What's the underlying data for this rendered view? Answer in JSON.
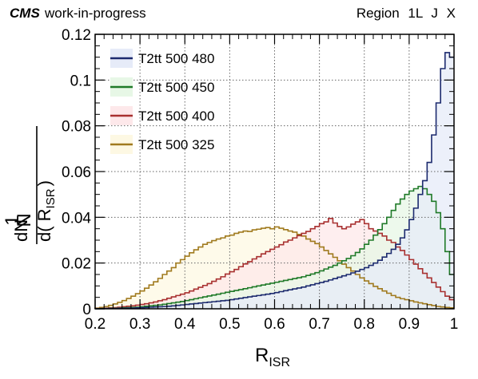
{
  "header": {
    "experiment": "CMS",
    "status": "work-in-progress",
    "region": "Region  1L  J  X"
  },
  "chart_data": {
    "type": "area",
    "xlabel_main": "R",
    "xlabel_sub": "ISR",
    "ylabel_one": "1",
    "ylabel_N": "N",
    "ylabel_dN": "dN",
    "ylabel_d": "d( R",
    "ylabel_sub": "ISR",
    "ylabel_close": ")",
    "xlim": [
      0.2,
      1.0
    ],
    "ylim": [
      0,
      0.12
    ],
    "xticks": [
      "0.2",
      "0.3",
      "0.4",
      "0.5",
      "0.6",
      "0.7",
      "0.8",
      "0.9",
      "1"
    ],
    "yticks": [
      "0",
      "0.02",
      "0.04",
      "0.06",
      "0.08",
      "0.1",
      "0.12"
    ],
    "grid": true,
    "legend_position": "top-left",
    "bin_edges_start": 0.2,
    "bin_width": 0.01,
    "series": [
      {
        "name": "T2tt 500 325",
        "color": "#a07a1e",
        "fill": "#fdf8e3",
        "values": [
          0.0003,
          0.0006,
          0.001,
          0.0015,
          0.0021,
          0.0028,
          0.0036,
          0.0045,
          0.0055,
          0.0066,
          0.0078,
          0.009,
          0.0104,
          0.0118,
          0.0133,
          0.015,
          0.0165,
          0.018,
          0.02,
          0.0215,
          0.023,
          0.0245,
          0.0258,
          0.027,
          0.0282,
          0.029,
          0.0298,
          0.0305,
          0.031,
          0.0318,
          0.0322,
          0.033,
          0.0335,
          0.034,
          0.0338,
          0.0345,
          0.0348,
          0.0352,
          0.0355,
          0.035,
          0.0358,
          0.0352,
          0.0346,
          0.034,
          0.0335,
          0.0325,
          0.0318,
          0.0305,
          0.0295,
          0.0285,
          0.027,
          0.0255,
          0.024,
          0.0225,
          0.021,
          0.0195,
          0.018,
          0.0165,
          0.015,
          0.0135,
          0.0122,
          0.011,
          0.0098,
          0.0088,
          0.0078,
          0.0068,
          0.0058,
          0.005,
          0.0044,
          0.004,
          0.0035,
          0.003,
          0.0026,
          0.0022,
          0.0018,
          0.0014,
          0.001,
          0.0008,
          0.0006,
          0.0004
        ]
      },
      {
        "name": "T2tt 500 400",
        "color": "#a83030",
        "fill": "#fde8ea",
        "values": [
          0.0001,
          0.0002,
          0.0003,
          0.0004,
          0.0005,
          0.0007,
          0.0009,
          0.0011,
          0.0013,
          0.0016,
          0.0019,
          0.0022,
          0.0026,
          0.003,
          0.0035,
          0.004,
          0.0046,
          0.0052,
          0.0058,
          0.0064,
          0.007,
          0.0078,
          0.0086,
          0.0094,
          0.0102,
          0.011,
          0.012,
          0.013,
          0.014,
          0.0152,
          0.0162,
          0.0172,
          0.0184,
          0.0196,
          0.0206,
          0.0218,
          0.0228,
          0.024,
          0.025,
          0.026,
          0.027,
          0.028,
          0.0292,
          0.03,
          0.031,
          0.032,
          0.033,
          0.0338,
          0.035,
          0.036,
          0.0372,
          0.038,
          0.0395,
          0.0375,
          0.036,
          0.035,
          0.0358,
          0.037,
          0.038,
          0.039,
          0.0372,
          0.035,
          0.034,
          0.033,
          0.0318,
          0.03,
          0.029,
          0.027,
          0.0255,
          0.0235,
          0.0215,
          0.0195,
          0.0175,
          0.0155,
          0.0135,
          0.0115,
          0.0095,
          0.0075,
          0.0055,
          0.004
        ]
      },
      {
        "name": "T2tt 500 450",
        "color": "#1f7a28",
        "fill": "#e7f7e6",
        "values": [
          0.0,
          0.0001,
          0.0001,
          0.0002,
          0.0002,
          0.0003,
          0.0004,
          0.0005,
          0.0006,
          0.0007,
          0.0009,
          0.0011,
          0.0013,
          0.0015,
          0.0017,
          0.002,
          0.0023,
          0.0026,
          0.0029,
          0.0032,
          0.0036,
          0.004,
          0.0044,
          0.0048,
          0.0052,
          0.0056,
          0.006,
          0.0064,
          0.0068,
          0.0072,
          0.0076,
          0.008,
          0.0084,
          0.0088,
          0.0092,
          0.0096,
          0.01,
          0.0104,
          0.0108,
          0.0112,
          0.0116,
          0.012,
          0.0124,
          0.0128,
          0.0132,
          0.0136,
          0.014,
          0.0146,
          0.0152,
          0.0158,
          0.0166,
          0.0174,
          0.0182,
          0.019,
          0.02,
          0.021,
          0.022,
          0.0232,
          0.0246,
          0.0262,
          0.0282,
          0.03,
          0.0322,
          0.0346,
          0.0372,
          0.04,
          0.043,
          0.0458,
          0.048,
          0.05,
          0.0515,
          0.0525,
          0.0535,
          0.0525,
          0.05,
          0.047,
          0.042,
          0.035,
          0.025,
          0.015
        ]
      },
      {
        "name": "T2tt 500 480",
        "color": "#1c2a6e",
        "fill": "#e6ebf8",
        "values": [
          0.0,
          0.0,
          0.0001,
          0.0001,
          0.0001,
          0.0002,
          0.0002,
          0.0003,
          0.0003,
          0.0004,
          0.0005,
          0.0006,
          0.0007,
          0.0008,
          0.0009,
          0.001,
          0.0011,
          0.0013,
          0.0015,
          0.0017,
          0.0019,
          0.0021,
          0.0023,
          0.0025,
          0.0027,
          0.0029,
          0.0031,
          0.0033,
          0.0035,
          0.0037,
          0.004,
          0.0043,
          0.0046,
          0.0049,
          0.0052,
          0.0055,
          0.0058,
          0.0061,
          0.0064,
          0.0067,
          0.0071,
          0.0075,
          0.0079,
          0.0083,
          0.0087,
          0.0091,
          0.0095,
          0.01,
          0.0105,
          0.011,
          0.0115,
          0.012,
          0.0126,
          0.0132,
          0.0138,
          0.0144,
          0.015,
          0.0157,
          0.0164,
          0.0172,
          0.018,
          0.019,
          0.02,
          0.0212,
          0.0226,
          0.0242,
          0.026,
          0.0282,
          0.031,
          0.0345,
          0.039,
          0.044,
          0.05,
          0.056,
          0.064,
          0.076,
          0.09,
          0.105,
          0.112,
          0.11
        ]
      }
    ]
  }
}
